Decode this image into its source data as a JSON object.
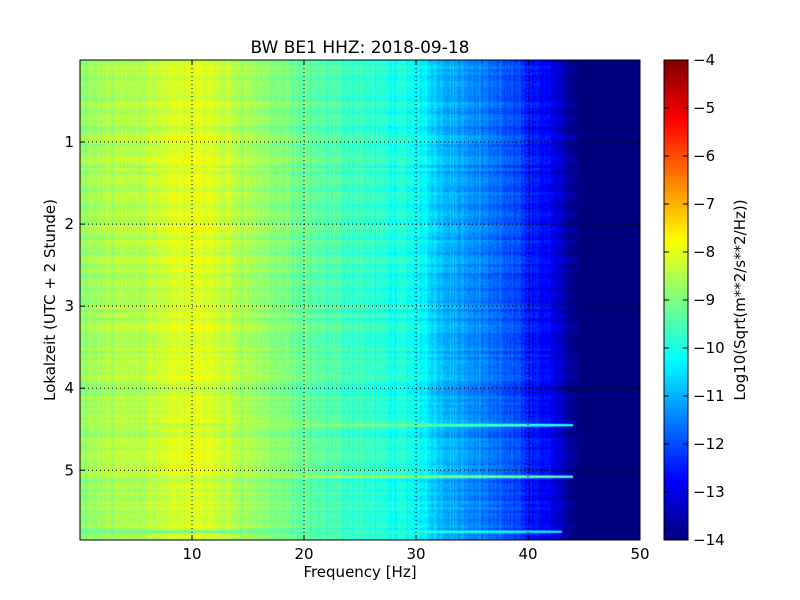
{
  "chart_data": {
    "type": "heatmap",
    "title": "BW BE1 HHZ: 2018-09-18",
    "xlabel": "Frequency [Hz]",
    "ylabel": "Lokalzeit (UTC + 2 Stunde)",
    "xlim": [
      0,
      50
    ],
    "ylim": [
      5.85,
      0
    ],
    "y_inverted": true,
    "x_ticks": [
      10,
      20,
      30,
      40,
      50
    ],
    "y_ticks": [
      1,
      2,
      3,
      4,
      5
    ],
    "grid": true,
    "colormap": "jet",
    "colorbar": {
      "label": "Log10(Sqrt(m**2/s**2/Hz))",
      "min": -14,
      "max": -4,
      "ticks": [
        -4,
        -5,
        -6,
        -7,
        -8,
        -9,
        -10,
        -11,
        -12,
        -13,
        -14
      ]
    },
    "spectrum_profile": {
      "frequency_hz": [
        0,
        2,
        5,
        8,
        10,
        12,
        15,
        20,
        25,
        30,
        32,
        35,
        38,
        40,
        42,
        43,
        44,
        45,
        50
      ],
      "log_amplitude": [
        -8.9,
        -8.6,
        -8.5,
        -8.2,
        -8.0,
        -8.2,
        -8.6,
        -9.3,
        -9.7,
        -10.2,
        -10.8,
        -11.3,
        -11.9,
        -12.4,
        -12.9,
        -13.4,
        -13.8,
        -14,
        -14
      ]
    },
    "band_events": [
      {
        "time_h": 4.45,
        "log_amplitude": -8.6,
        "fmax_hz": 44
      },
      {
        "time_h": 5.08,
        "log_amplitude": -8.4,
        "fmax_hz": 44
      },
      {
        "time_h": 5.75,
        "log_amplitude": -9.5,
        "fmax_hz": 43
      }
    ]
  }
}
